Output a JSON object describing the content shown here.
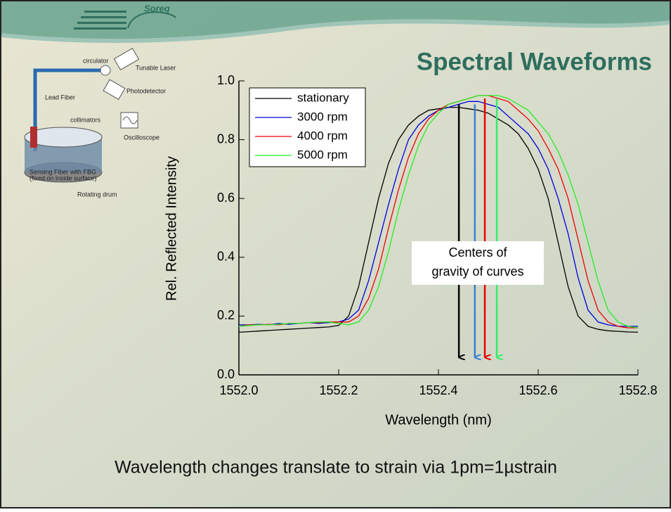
{
  "slide": {
    "title": "Spectral Waveforms",
    "logo": "Soreq",
    "caption": "Wavelength changes translate  to strain via 1pm=1µstrain",
    "diagram": {
      "circulator": "circulator",
      "laser": "Tunable Laser",
      "detector": "Photodetector",
      "lead": "Lead Fiber",
      "collimators": "collimators",
      "scope": "Oscilloscope",
      "sensing": [
        "Sensing Fiber with FBG",
        "(fixed on inside surface)"
      ],
      "drum": "Rotating drum"
    }
  },
  "chart_data": {
    "type": "line",
    "xlabel": "Wavelength (nm)",
    "ylabel": "Rel. Reflected Intensity",
    "xlim": [
      1552.0,
      1552.8
    ],
    "xticks": [
      {
        "value": 1552.0,
        "label": "1552.0"
      },
      1552.2,
      1552.4,
      1552.6,
      1552.8
    ],
    "ylim": [
      0,
      1.0
    ],
    "yticks": [
      {
        "value": 0,
        "label": "0.0"
      },
      0.2,
      0.4,
      0.6,
      0.8,
      {
        "value": 1.0,
        "label": "1.0"
      }
    ],
    "legend": "upper left",
    "grid": false,
    "x": [
      1552.0,
      1552.02,
      1552.04,
      1552.06,
      1552.08,
      1552.1,
      1552.12,
      1552.14,
      1552.16,
      1552.18,
      1552.2,
      1552.22,
      1552.24,
      1552.26,
      1552.28,
      1552.3,
      1552.32,
      1552.34,
      1552.36,
      1552.38,
      1552.4,
      1552.42,
      1552.44,
      1552.46,
      1552.48,
      1552.5,
      1552.52,
      1552.54,
      1552.56,
      1552.58,
      1552.6,
      1552.62,
      1552.64,
      1552.66,
      1552.68,
      1552.7,
      1552.72,
      1552.74,
      1552.76,
      1552.78,
      1552.8
    ],
    "series": [
      {
        "name": "stationary",
        "color": "#000000",
        "values": [
          0.145,
          0.147,
          0.149,
          0.151,
          0.153,
          0.155,
          0.157,
          0.159,
          0.161,
          0.163,
          0.168,
          0.2,
          0.3,
          0.45,
          0.6,
          0.72,
          0.8,
          0.85,
          0.88,
          0.9,
          0.905,
          0.91,
          0.91,
          0.905,
          0.9,
          0.89,
          0.87,
          0.85,
          0.82,
          0.77,
          0.7,
          0.6,
          0.45,
          0.3,
          0.2,
          0.165,
          0.155,
          0.15,
          0.148,
          0.146,
          0.145
        ]
      },
      {
        "name": "3000 rpm",
        "color": "#0000dd",
        "values": [
          0.17,
          0.17,
          0.172,
          0.17,
          0.175,
          0.172,
          0.175,
          0.178,
          0.175,
          0.178,
          0.18,
          0.19,
          0.22,
          0.32,
          0.45,
          0.58,
          0.7,
          0.8,
          0.85,
          0.88,
          0.9,
          0.91,
          0.92,
          0.93,
          0.93,
          0.92,
          0.91,
          0.88,
          0.85,
          0.82,
          0.77,
          0.7,
          0.6,
          0.48,
          0.33,
          0.22,
          0.18,
          0.17,
          0.165,
          0.165,
          0.165
        ]
      },
      {
        "name": "4000 rpm",
        "color": "#ee0000",
        "values": [
          0.165,
          0.17,
          0.17,
          0.172,
          0.17,
          0.175,
          0.175,
          0.178,
          0.178,
          0.18,
          0.18,
          0.18,
          0.2,
          0.26,
          0.36,
          0.5,
          0.63,
          0.74,
          0.82,
          0.87,
          0.9,
          0.92,
          0.93,
          0.94,
          0.95,
          0.95,
          0.94,
          0.93,
          0.9,
          0.87,
          0.83,
          0.77,
          0.7,
          0.6,
          0.46,
          0.32,
          0.22,
          0.18,
          0.165,
          0.16,
          0.16
        ]
      },
      {
        "name": "5000 rpm",
        "color": "#22ee22",
        "values": [
          0.165,
          0.168,
          0.17,
          0.17,
          0.172,
          0.175,
          0.175,
          0.178,
          0.18,
          0.18,
          0.175,
          0.17,
          0.18,
          0.22,
          0.3,
          0.42,
          0.56,
          0.68,
          0.78,
          0.85,
          0.89,
          0.92,
          0.93,
          0.94,
          0.95,
          0.95,
          0.95,
          0.94,
          0.92,
          0.9,
          0.86,
          0.82,
          0.76,
          0.68,
          0.58,
          0.45,
          0.32,
          0.22,
          0.18,
          0.165,
          0.16
        ]
      }
    ],
    "annotation": [
      "Centers of",
      "gravity of curves"
    ],
    "arrows": [
      {
        "x": 1552.441,
        "y_top": 0.92,
        "y_bottom": 0.06,
        "color": "#000000"
      },
      {
        "x": 1552.473,
        "y_top": 0.92,
        "y_bottom": 0.06,
        "color": "#3a7fd5"
      },
      {
        "x": 1552.493,
        "y_top": 0.94,
        "y_bottom": 0.06,
        "color": "#ee0000"
      },
      {
        "x": 1552.517,
        "y_top": 0.94,
        "y_bottom": 0.06,
        "color": "#33ee66"
      }
    ]
  }
}
